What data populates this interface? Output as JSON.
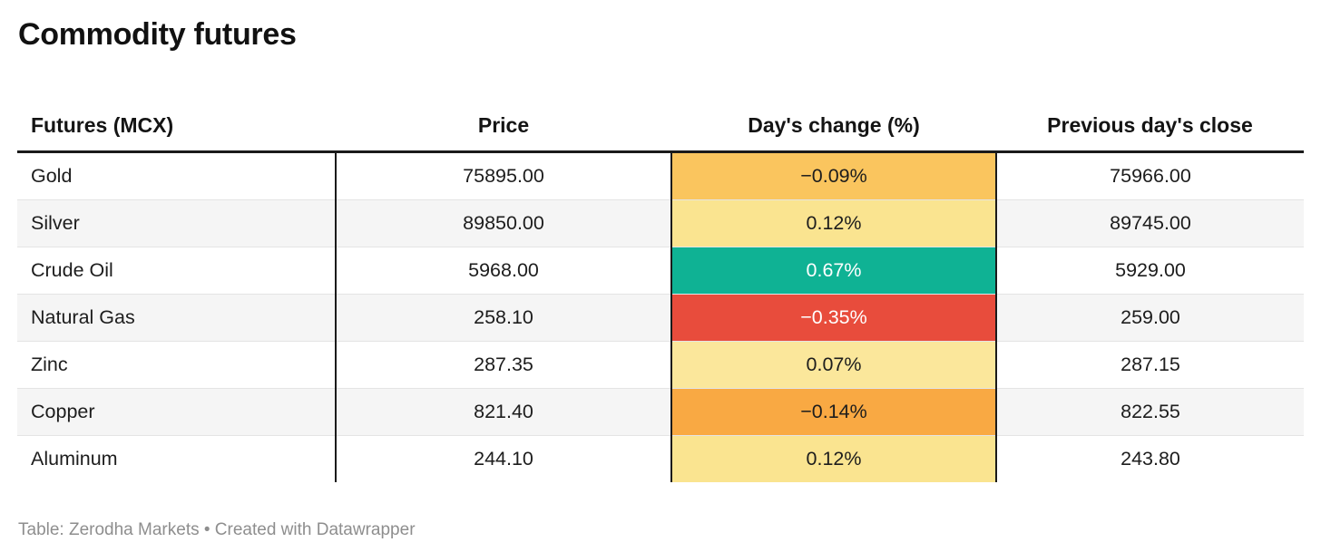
{
  "page": {
    "title": "Commodity futures",
    "footer": "Table: Zerodha Markets • Created with Datawrapper"
  },
  "table": {
    "columns": {
      "futures": "Futures (MCX)",
      "price": "Price",
      "change": "Day's change (%)",
      "prev_close": "Previous day's close"
    },
    "rows": [
      {
        "name": "Gold",
        "price": "75895.00",
        "change": "−0.09%",
        "prev_close": "75966.00",
        "change_bg": "#fac55e",
        "change_fg": "#1d1d1d"
      },
      {
        "name": "Silver",
        "price": "89850.00",
        "change": "0.12%",
        "prev_close": "89745.00",
        "change_bg": "#fae490",
        "change_fg": "#1d1d1d"
      },
      {
        "name": "Crude Oil",
        "price": "5968.00",
        "change": "0.67%",
        "prev_close": "5929.00",
        "change_bg": "#0fb294",
        "change_fg": "#ffffff"
      },
      {
        "name": "Natural Gas",
        "price": "258.10",
        "change": "−0.35%",
        "prev_close": "259.00",
        "change_bg": "#e84c3c",
        "change_fg": "#ffffff"
      },
      {
        "name": "Zinc",
        "price": "287.35",
        "change": "0.07%",
        "prev_close": "287.15",
        "change_bg": "#fbe79b",
        "change_fg": "#1d1d1d"
      },
      {
        "name": "Copper",
        "price": "821.40",
        "change": "−0.14%",
        "prev_close": "822.55",
        "change_bg": "#f9a943",
        "change_fg": "#1d1d1d"
      },
      {
        "name": "Aluminum",
        "price": "244.10",
        "change": "0.12%",
        "prev_close": "243.80",
        "change_bg": "#fae490",
        "change_fg": "#1d1d1d"
      }
    ]
  },
  "colors": {
    "positive_strong": "#0fb294",
    "positive_weak": "#fae490",
    "negative_weak": "#fac55e",
    "negative_medium": "#f9a943",
    "negative_strong": "#e84c3c",
    "row_alt": "#f5f5f5",
    "rule": "#1a1a1a"
  },
  "chart_data": {
    "type": "table",
    "title": "Commodity futures",
    "columns": [
      "Futures (MCX)",
      "Price",
      "Day's change (%)",
      "Previous day's close"
    ],
    "rows": [
      [
        "Gold",
        75895.0,
        -0.09,
        75966.0
      ],
      [
        "Silver",
        89850.0,
        0.12,
        89745.0
      ],
      [
        "Crude Oil",
        5968.0,
        0.67,
        5929.0
      ],
      [
        "Natural Gas",
        258.1,
        -0.35,
        259.0
      ],
      [
        "Zinc",
        287.35,
        0.07,
        287.15
      ],
      [
        "Copper",
        821.4,
        -0.14,
        822.55
      ],
      [
        "Aluminum",
        244.1,
        0.12,
        243.8
      ]
    ],
    "notes": "Day's change (%) column cells are heatmap-colored: red for strong negative, orange/amber for mild negative, pale yellow for mild positive, teal-green for strong positive",
    "source": "Table: Zerodha Markets • Created with Datawrapper"
  }
}
